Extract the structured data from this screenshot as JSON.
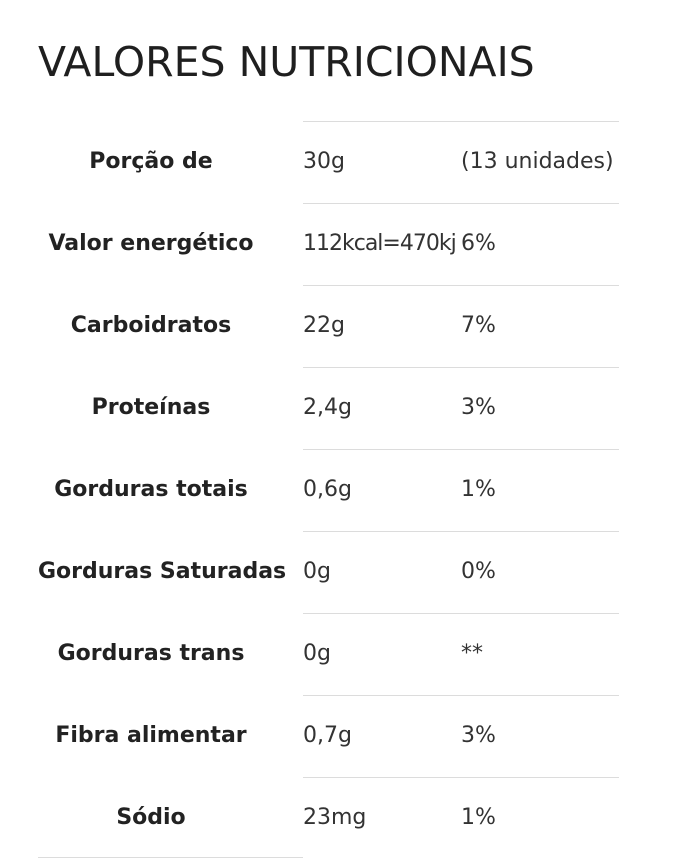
{
  "page": {
    "title": "VALORES NUTRICIONAIS"
  },
  "nutrition_table": {
    "rows": [
      {
        "name": "Porção de",
        "amount": "30g",
        "percent": "(13 unidades)"
      },
      {
        "name": "Valor energético",
        "amount": "112kcal=470kj",
        "percent": "6%"
      },
      {
        "name": "Carboidratos",
        "amount": "22g",
        "percent": "7%"
      },
      {
        "name": "Proteínas",
        "amount": "2,4g",
        "percent": "3%"
      },
      {
        "name": "Gorduras totais",
        "amount": "0,6g",
        "percent": "1%"
      },
      {
        "name": "Gorduras Saturadas",
        "amount": "0g",
        "percent": "0%"
      },
      {
        "name": "Gorduras trans",
        "amount": "0g",
        "percent": "**"
      },
      {
        "name": "Fibra alimentar",
        "amount": "0,7g",
        "percent": "3%"
      },
      {
        "name": "Sódio",
        "amount": "23mg",
        "percent": "1%"
      }
    ]
  }
}
